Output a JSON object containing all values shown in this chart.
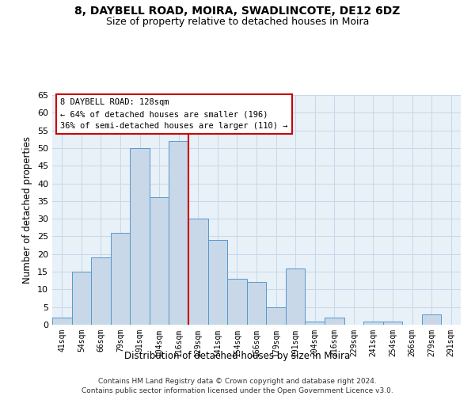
{
  "title1": "8, DAYBELL ROAD, MOIRA, SWADLINCOTE, DE12 6DZ",
  "title2": "Size of property relative to detached houses in Moira",
  "xlabel": "Distribution of detached houses by size in Moira",
  "ylabel": "Number of detached properties",
  "footer1": "Contains HM Land Registry data © Crown copyright and database right 2024.",
  "footer2": "Contains public sector information licensed under the Open Government Licence v3.0.",
  "categories": [
    "41sqm",
    "54sqm",
    "66sqm",
    "79sqm",
    "91sqm",
    "104sqm",
    "116sqm",
    "129sqm",
    "141sqm",
    "154sqm",
    "166sqm",
    "179sqm",
    "191sqm",
    "204sqm",
    "216sqm",
    "229sqm",
    "241sqm",
    "254sqm",
    "266sqm",
    "279sqm",
    "291sqm"
  ],
  "values": [
    2,
    15,
    19,
    26,
    50,
    36,
    52,
    30,
    24,
    13,
    12,
    5,
    16,
    1,
    2,
    0,
    1,
    1,
    0,
    3,
    0
  ],
  "bar_color": "#c8d8e8",
  "bar_edge_color": "#5599cc",
  "highlight_index": 6,
  "highlight_line_color": "#cc0000",
  "annotation_line1": "8 DAYBELL ROAD: 128sqm",
  "annotation_line2": "← 64% of detached houses are smaller (196)",
  "annotation_line3": "36% of semi-detached houses are larger (110) →",
  "annotation_box_color": "#ffffff",
  "annotation_border_color": "#cc0000",
  "ylim": [
    0,
    65
  ],
  "yticks": [
    0,
    5,
    10,
    15,
    20,
    25,
    30,
    35,
    40,
    45,
    50,
    55,
    60,
    65
  ],
  "grid_color": "#c8d8e8",
  "bg_color": "#e8f0f8"
}
